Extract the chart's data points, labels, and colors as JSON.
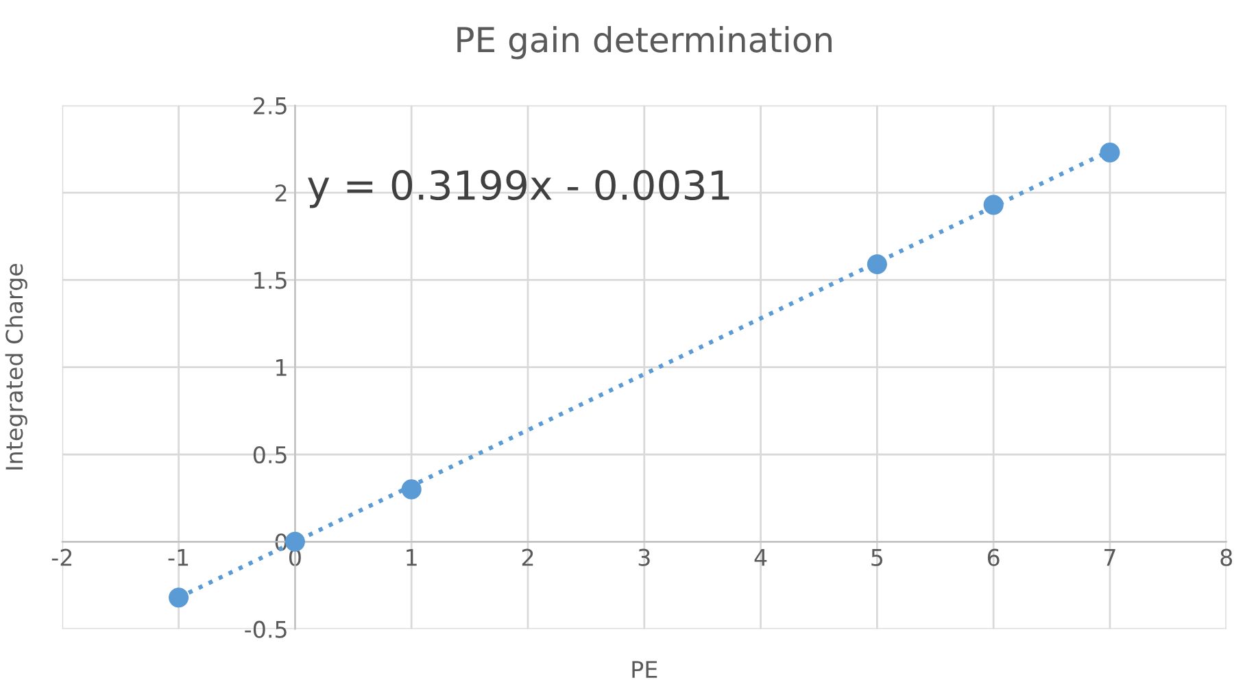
{
  "chart_data": {
    "type": "scatter",
    "title": "PE gain determination",
    "xlabel": "PE",
    "ylabel": "Integrated Charge",
    "x": [
      -1,
      0,
      1,
      5,
      6,
      7
    ],
    "series": [
      {
        "color": "#5b9bd5",
        "marker": "circle",
        "values": [
          -0.32,
          0,
          0.3,
          1.59,
          1.93,
          2.23
        ]
      },
      {
        "type": "line",
        "color": "#5b9bd5",
        "line_style": "dotted",
        "marker": "none",
        "x": [
          -1,
          7
        ],
        "values": [
          -0.32,
          2.24
        ]
      }
    ],
    "annotations": [
      "y = 0.3199x - 0.0031"
    ],
    "xlim": [
      -2,
      8
    ],
    "xticks": [
      -2,
      -1,
      0,
      1,
      2,
      3,
      4,
      5,
      6,
      7,
      8
    ],
    "ylim": [
      -0.5,
      2.5
    ],
    "yticks": [
      -0.5,
      0,
      0.5,
      1,
      1.5,
      2,
      2.5
    ],
    "grid": true,
    "legend": false
  }
}
